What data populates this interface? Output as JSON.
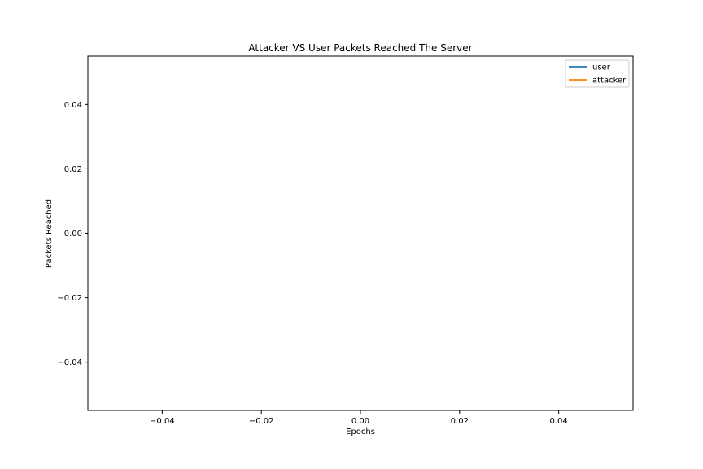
{
  "chart_data": {
    "type": "line",
    "title": "Attacker VS User Packets Reached The Server",
    "xlabel": "Epochs",
    "ylabel": "Packets Reached",
    "xlim": [
      -0.055,
      0.055
    ],
    "ylim": [
      -0.055,
      0.055
    ],
    "xticks": [
      -0.04,
      -0.02,
      0.0,
      0.02,
      0.04
    ],
    "yticks": [
      -0.04,
      -0.02,
      0.0,
      0.02,
      0.04
    ],
    "xtick_labels": [
      "−0.04",
      "−0.02",
      "0.00",
      "0.02",
      "0.04"
    ],
    "ytick_labels": [
      "−0.04",
      "−0.02",
      "0.00",
      "0.02",
      "0.04"
    ],
    "grid": false,
    "legend_position": "top-right",
    "series": [
      {
        "name": "user",
        "color": "#1f77b4",
        "x": [],
        "y": []
      },
      {
        "name": "attacker",
        "color": "#ff7f0e",
        "x": [],
        "y": []
      }
    ]
  }
}
